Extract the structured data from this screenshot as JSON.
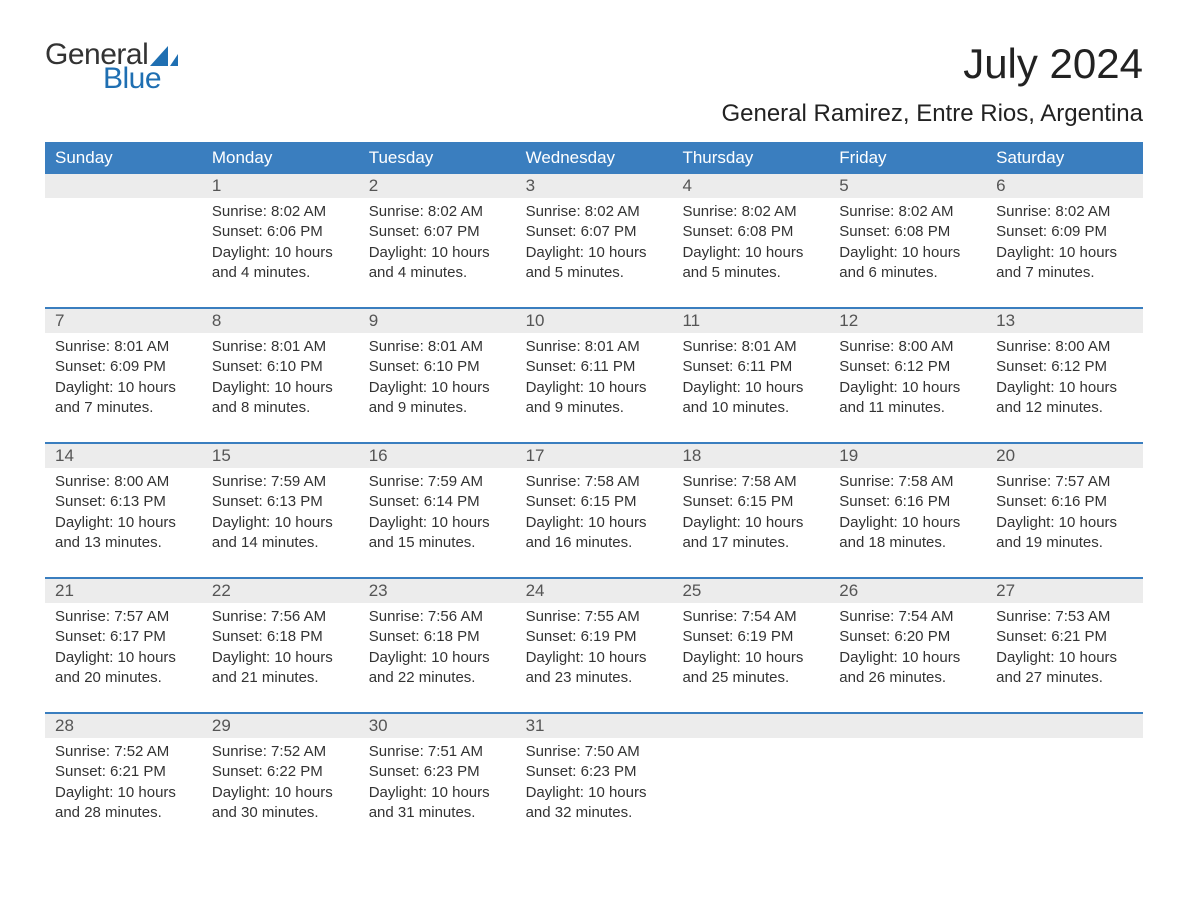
{
  "logo": {
    "text_top": "General",
    "text_bottom": "Blue",
    "sail_color": "#1f6fb2",
    "top_color": "#333333"
  },
  "title": "July 2024",
  "location": "General Ramirez, Entre Rios, Argentina",
  "header_bg": "#3a7ebf",
  "header_fg": "#ffffff",
  "daynum_bg": "#ececec",
  "separator_color": "#3a7ebf",
  "text_color": "#333333",
  "body_bg": "#ffffff",
  "font_family": "Arial",
  "day_headers": [
    "Sunday",
    "Monday",
    "Tuesday",
    "Wednesday",
    "Thursday",
    "Friday",
    "Saturday"
  ],
  "weeks": [
    {
      "numbers": [
        "",
        "1",
        "2",
        "3",
        "4",
        "5",
        "6"
      ],
      "details": [
        {
          "sunrise": "",
          "sunset": "",
          "daylight1": "",
          "daylight2": ""
        },
        {
          "sunrise": "Sunrise: 8:02 AM",
          "sunset": "Sunset: 6:06 PM",
          "daylight1": "Daylight: 10 hours",
          "daylight2": "and 4 minutes."
        },
        {
          "sunrise": "Sunrise: 8:02 AM",
          "sunset": "Sunset: 6:07 PM",
          "daylight1": "Daylight: 10 hours",
          "daylight2": "and 4 minutes."
        },
        {
          "sunrise": "Sunrise: 8:02 AM",
          "sunset": "Sunset: 6:07 PM",
          "daylight1": "Daylight: 10 hours",
          "daylight2": "and 5 minutes."
        },
        {
          "sunrise": "Sunrise: 8:02 AM",
          "sunset": "Sunset: 6:08 PM",
          "daylight1": "Daylight: 10 hours",
          "daylight2": "and 5 minutes."
        },
        {
          "sunrise": "Sunrise: 8:02 AM",
          "sunset": "Sunset: 6:08 PM",
          "daylight1": "Daylight: 10 hours",
          "daylight2": "and 6 minutes."
        },
        {
          "sunrise": "Sunrise: 8:02 AM",
          "sunset": "Sunset: 6:09 PM",
          "daylight1": "Daylight: 10 hours",
          "daylight2": "and 7 minutes."
        }
      ]
    },
    {
      "numbers": [
        "7",
        "8",
        "9",
        "10",
        "11",
        "12",
        "13"
      ],
      "details": [
        {
          "sunrise": "Sunrise: 8:01 AM",
          "sunset": "Sunset: 6:09 PM",
          "daylight1": "Daylight: 10 hours",
          "daylight2": "and 7 minutes."
        },
        {
          "sunrise": "Sunrise: 8:01 AM",
          "sunset": "Sunset: 6:10 PM",
          "daylight1": "Daylight: 10 hours",
          "daylight2": "and 8 minutes."
        },
        {
          "sunrise": "Sunrise: 8:01 AM",
          "sunset": "Sunset: 6:10 PM",
          "daylight1": "Daylight: 10 hours",
          "daylight2": "and 9 minutes."
        },
        {
          "sunrise": "Sunrise: 8:01 AM",
          "sunset": "Sunset: 6:11 PM",
          "daylight1": "Daylight: 10 hours",
          "daylight2": "and 9 minutes."
        },
        {
          "sunrise": "Sunrise: 8:01 AM",
          "sunset": "Sunset: 6:11 PM",
          "daylight1": "Daylight: 10 hours",
          "daylight2": "and 10 minutes."
        },
        {
          "sunrise": "Sunrise: 8:00 AM",
          "sunset": "Sunset: 6:12 PM",
          "daylight1": "Daylight: 10 hours",
          "daylight2": "and 11 minutes."
        },
        {
          "sunrise": "Sunrise: 8:00 AM",
          "sunset": "Sunset: 6:12 PM",
          "daylight1": "Daylight: 10 hours",
          "daylight2": "and 12 minutes."
        }
      ]
    },
    {
      "numbers": [
        "14",
        "15",
        "16",
        "17",
        "18",
        "19",
        "20"
      ],
      "details": [
        {
          "sunrise": "Sunrise: 8:00 AM",
          "sunset": "Sunset: 6:13 PM",
          "daylight1": "Daylight: 10 hours",
          "daylight2": "and 13 minutes."
        },
        {
          "sunrise": "Sunrise: 7:59 AM",
          "sunset": "Sunset: 6:13 PM",
          "daylight1": "Daylight: 10 hours",
          "daylight2": "and 14 minutes."
        },
        {
          "sunrise": "Sunrise: 7:59 AM",
          "sunset": "Sunset: 6:14 PM",
          "daylight1": "Daylight: 10 hours",
          "daylight2": "and 15 minutes."
        },
        {
          "sunrise": "Sunrise: 7:58 AM",
          "sunset": "Sunset: 6:15 PM",
          "daylight1": "Daylight: 10 hours",
          "daylight2": "and 16 minutes."
        },
        {
          "sunrise": "Sunrise: 7:58 AM",
          "sunset": "Sunset: 6:15 PM",
          "daylight1": "Daylight: 10 hours",
          "daylight2": "and 17 minutes."
        },
        {
          "sunrise": "Sunrise: 7:58 AM",
          "sunset": "Sunset: 6:16 PM",
          "daylight1": "Daylight: 10 hours",
          "daylight2": "and 18 minutes."
        },
        {
          "sunrise": "Sunrise: 7:57 AM",
          "sunset": "Sunset: 6:16 PM",
          "daylight1": "Daylight: 10 hours",
          "daylight2": "and 19 minutes."
        }
      ]
    },
    {
      "numbers": [
        "21",
        "22",
        "23",
        "24",
        "25",
        "26",
        "27"
      ],
      "details": [
        {
          "sunrise": "Sunrise: 7:57 AM",
          "sunset": "Sunset: 6:17 PM",
          "daylight1": "Daylight: 10 hours",
          "daylight2": "and 20 minutes."
        },
        {
          "sunrise": "Sunrise: 7:56 AM",
          "sunset": "Sunset: 6:18 PM",
          "daylight1": "Daylight: 10 hours",
          "daylight2": "and 21 minutes."
        },
        {
          "sunrise": "Sunrise: 7:56 AM",
          "sunset": "Sunset: 6:18 PM",
          "daylight1": "Daylight: 10 hours",
          "daylight2": "and 22 minutes."
        },
        {
          "sunrise": "Sunrise: 7:55 AM",
          "sunset": "Sunset: 6:19 PM",
          "daylight1": "Daylight: 10 hours",
          "daylight2": "and 23 minutes."
        },
        {
          "sunrise": "Sunrise: 7:54 AM",
          "sunset": "Sunset: 6:19 PM",
          "daylight1": "Daylight: 10 hours",
          "daylight2": "and 25 minutes."
        },
        {
          "sunrise": "Sunrise: 7:54 AM",
          "sunset": "Sunset: 6:20 PM",
          "daylight1": "Daylight: 10 hours",
          "daylight2": "and 26 minutes."
        },
        {
          "sunrise": "Sunrise: 7:53 AM",
          "sunset": "Sunset: 6:21 PM",
          "daylight1": "Daylight: 10 hours",
          "daylight2": "and 27 minutes."
        }
      ]
    },
    {
      "numbers": [
        "28",
        "29",
        "30",
        "31",
        "",
        "",
        ""
      ],
      "details": [
        {
          "sunrise": "Sunrise: 7:52 AM",
          "sunset": "Sunset: 6:21 PM",
          "daylight1": "Daylight: 10 hours",
          "daylight2": "and 28 minutes."
        },
        {
          "sunrise": "Sunrise: 7:52 AM",
          "sunset": "Sunset: 6:22 PM",
          "daylight1": "Daylight: 10 hours",
          "daylight2": "and 30 minutes."
        },
        {
          "sunrise": "Sunrise: 7:51 AM",
          "sunset": "Sunset: 6:23 PM",
          "daylight1": "Daylight: 10 hours",
          "daylight2": "and 31 minutes."
        },
        {
          "sunrise": "Sunrise: 7:50 AM",
          "sunset": "Sunset: 6:23 PM",
          "daylight1": "Daylight: 10 hours",
          "daylight2": "and 32 minutes."
        },
        {
          "sunrise": "",
          "sunset": "",
          "daylight1": "",
          "daylight2": ""
        },
        {
          "sunrise": "",
          "sunset": "",
          "daylight1": "",
          "daylight2": ""
        },
        {
          "sunrise": "",
          "sunset": "",
          "daylight1": "",
          "daylight2": ""
        }
      ]
    }
  ]
}
